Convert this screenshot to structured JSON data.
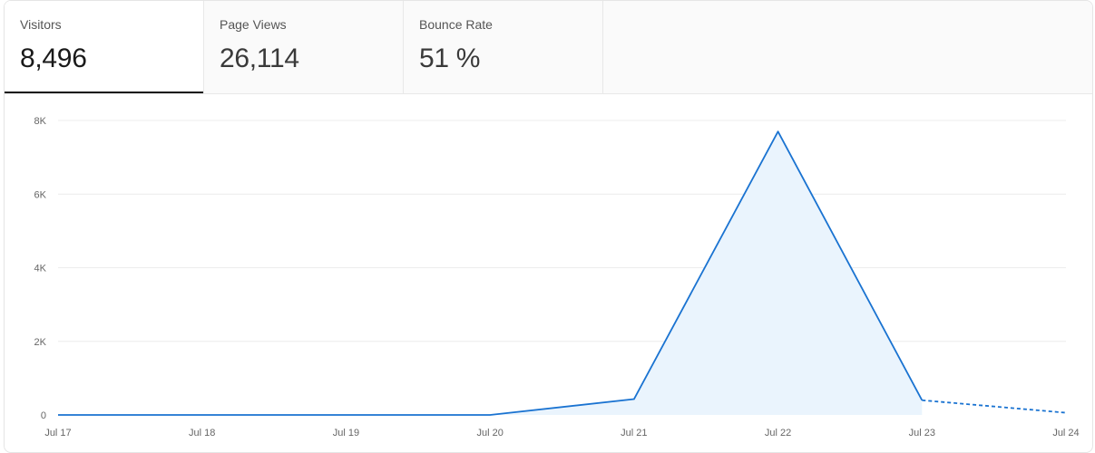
{
  "tabs": [
    {
      "label": "Visitors",
      "value": "8,496",
      "active": true
    },
    {
      "label": "Page Views",
      "value": "26,114",
      "active": false
    },
    {
      "label": "Bounce Rate",
      "value": "51 %",
      "active": false
    }
  ],
  "colors": {
    "line": "#1a73d1",
    "fill": "#eaf4fd",
    "grid": "#ececec"
  },
  "chart_data": {
    "type": "area",
    "title": "",
    "xlabel": "",
    "ylabel": "",
    "categories": [
      "Jul 17",
      "Jul 18",
      "Jul 19",
      "Jul 20",
      "Jul 21",
      "Jul 22",
      "Jul 23",
      "Jul 24"
    ],
    "series": [
      {
        "values": [
          0,
          0,
          0,
          0,
          430,
          7700,
          400,
          60
        ],
        "dashed_from_index": 6
      }
    ],
    "ylim": [
      0,
      8000
    ],
    "yticks": [
      0,
      2000,
      4000,
      6000,
      8000
    ],
    "ytick_labels": [
      "0",
      "2K",
      "4K",
      "6K",
      "8K"
    ],
    "grid": true,
    "legend": "none"
  }
}
